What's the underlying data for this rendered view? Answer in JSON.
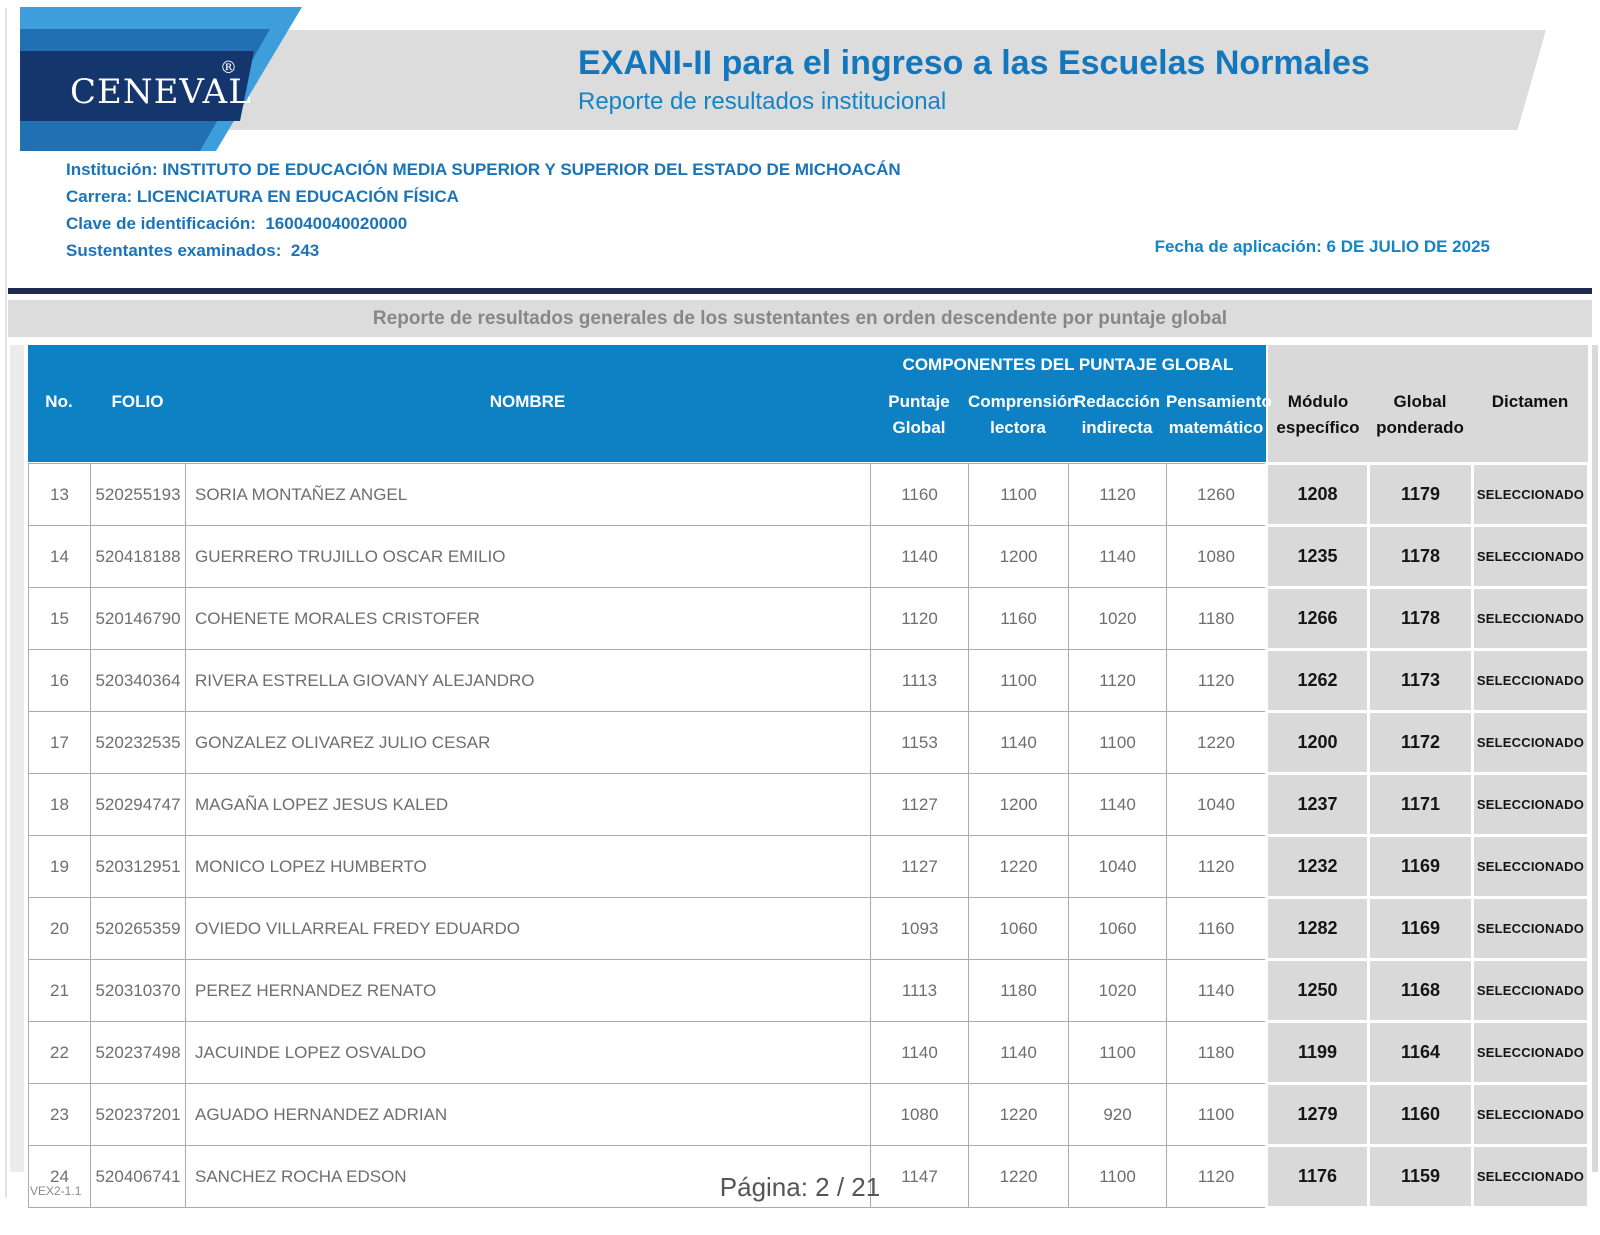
{
  "brand": {
    "logo_text": "CENEVAL",
    "registered_mark": "®"
  },
  "header": {
    "title": "EXANI-II para el ingreso a las Escuelas Normales",
    "subtitle": "Reporte de resultados institucional"
  },
  "info": {
    "institucion_label": "Institución:",
    "institucion": "INSTITUTO DE EDUCACIÓN MEDIA SUPERIOR Y SUPERIOR DEL ESTADO DE MICHOACÁN",
    "carrera_label": "Carrera:",
    "carrera": "LICENCIATURA EN EDUCACIÓN FÍSICA",
    "clave_label": "Clave de identificación:",
    "clave": "160040040020000",
    "sustentantes_label": "Sustentantes examinados:",
    "sustentantes": "243",
    "fecha_label": "Fecha de aplicación:",
    "fecha": "6 DE JULIO DE 2025"
  },
  "section_title": "Reporte de resultados generales de los sustentantes en orden descendente por puntaje global",
  "table": {
    "headers": {
      "componentes": "COMPONENTES DEL PUNTAJE GLOBAL",
      "no": "No.",
      "folio": "FOLIO",
      "nombre": "NOMBRE",
      "puntaje_global": [
        "Puntaje",
        "Global"
      ],
      "comprension_lectora": [
        "Comprensión",
        "lectora"
      ],
      "redaccion_indirecta": [
        "Redacción",
        "indirecta"
      ],
      "pensamiento_matematico": [
        "Pensamiento",
        "matemático"
      ],
      "modulo_especifico": [
        "Módulo",
        "específico"
      ],
      "global_ponderado": [
        "Global",
        "ponderado"
      ],
      "dictamen": "Dictamen"
    },
    "rows": [
      {
        "no": "13",
        "folio": "520255193",
        "nombre": "SORIA MONTAÑEZ ANGEL",
        "puntaje_global": "1160",
        "comprension_lectora": "1100",
        "redaccion_indirecta": "1120",
        "pensamiento_matematico": "1260",
        "modulo_especifico": "1208",
        "global_ponderado": "1179",
        "dictamen": "SELECCIONADO"
      },
      {
        "no": "14",
        "folio": "520418188",
        "nombre": "GUERRERO TRUJILLO OSCAR EMILIO",
        "puntaje_global": "1140",
        "comprension_lectora": "1200",
        "redaccion_indirecta": "1140",
        "pensamiento_matematico": "1080",
        "modulo_especifico": "1235",
        "global_ponderado": "1178",
        "dictamen": "SELECCIONADO"
      },
      {
        "no": "15",
        "folio": "520146790",
        "nombre": "COHENETE MORALES CRISTOFER",
        "puntaje_global": "1120",
        "comprension_lectora": "1160",
        "redaccion_indirecta": "1020",
        "pensamiento_matematico": "1180",
        "modulo_especifico": "1266",
        "global_ponderado": "1178",
        "dictamen": "SELECCIONADO"
      },
      {
        "no": "16",
        "folio": "520340364",
        "nombre": "RIVERA ESTRELLA GIOVANY ALEJANDRO",
        "puntaje_global": "1113",
        "comprension_lectora": "1100",
        "redaccion_indirecta": "1120",
        "pensamiento_matematico": "1120",
        "modulo_especifico": "1262",
        "global_ponderado": "1173",
        "dictamen": "SELECCIONADO"
      },
      {
        "no": "17",
        "folio": "520232535",
        "nombre": "GONZALEZ OLIVAREZ JULIO CESAR",
        "puntaje_global": "1153",
        "comprension_lectora": "1140",
        "redaccion_indirecta": "1100",
        "pensamiento_matematico": "1220",
        "modulo_especifico": "1200",
        "global_ponderado": "1172",
        "dictamen": "SELECCIONADO"
      },
      {
        "no": "18",
        "folio": "520294747",
        "nombre": "MAGAÑA LOPEZ JESUS KALED",
        "puntaje_global": "1127",
        "comprension_lectora": "1200",
        "redaccion_indirecta": "1140",
        "pensamiento_matematico": "1040",
        "modulo_especifico": "1237",
        "global_ponderado": "1171",
        "dictamen": "SELECCIONADO"
      },
      {
        "no": "19",
        "folio": "520312951",
        "nombre": "MONICO LOPEZ HUMBERTO",
        "puntaje_global": "1127",
        "comprension_lectora": "1220",
        "redaccion_indirecta": "1040",
        "pensamiento_matematico": "1120",
        "modulo_especifico": "1232",
        "global_ponderado": "1169",
        "dictamen": "SELECCIONADO"
      },
      {
        "no": "20",
        "folio": "520265359",
        "nombre": "OVIEDO VILLARREAL FREDY EDUARDO",
        "puntaje_global": "1093",
        "comprension_lectora": "1060",
        "redaccion_indirecta": "1060",
        "pensamiento_matematico": "1160",
        "modulo_especifico": "1282",
        "global_ponderado": "1169",
        "dictamen": "SELECCIONADO"
      },
      {
        "no": "21",
        "folio": "520310370",
        "nombre": "PEREZ HERNANDEZ RENATO",
        "puntaje_global": "1113",
        "comprension_lectora": "1180",
        "redaccion_indirecta": "1020",
        "pensamiento_matematico": "1140",
        "modulo_especifico": "1250",
        "global_ponderado": "1168",
        "dictamen": "SELECCIONADO"
      },
      {
        "no": "22",
        "folio": "520237498",
        "nombre": "JACUINDE LOPEZ OSVALDO",
        "puntaje_global": "1140",
        "comprension_lectora": "1140",
        "redaccion_indirecta": "1100",
        "pensamiento_matematico": "1180",
        "modulo_especifico": "1199",
        "global_ponderado": "1164",
        "dictamen": "SELECCIONADO"
      },
      {
        "no": "23",
        "folio": "520237201",
        "nombre": "AGUADO HERNANDEZ ADRIAN",
        "puntaje_global": "1080",
        "comprension_lectora": "1220",
        "redaccion_indirecta": "920",
        "pensamiento_matematico": "1100",
        "modulo_especifico": "1279",
        "global_ponderado": "1160",
        "dictamen": "SELECCIONADO"
      },
      {
        "no": "24",
        "folio": "520406741",
        "nombre": "SANCHEZ ROCHA EDSON",
        "puntaje_global": "1147",
        "comprension_lectora": "1220",
        "redaccion_indirecta": "1100",
        "pensamiento_matematico": "1120",
        "modulo_especifico": "1176",
        "global_ponderado": "1159",
        "dictamen": "SELECCIONADO"
      }
    ]
  },
  "footer": {
    "version": "VEX2-1.1",
    "page": "Página: 2 / 21"
  },
  "colors": {
    "table_header_blue": "#0e81c4",
    "title_blue": "#1377be",
    "info_blue": "#1b74b8",
    "navy_rule": "#1d2b4f",
    "gray_band": "#dcdcdc",
    "gray_cell": "#d9d9d9",
    "logo_light_blue": "#3d9edb",
    "logo_mid_blue": "#2170b3",
    "logo_navy": "#14366d"
  }
}
